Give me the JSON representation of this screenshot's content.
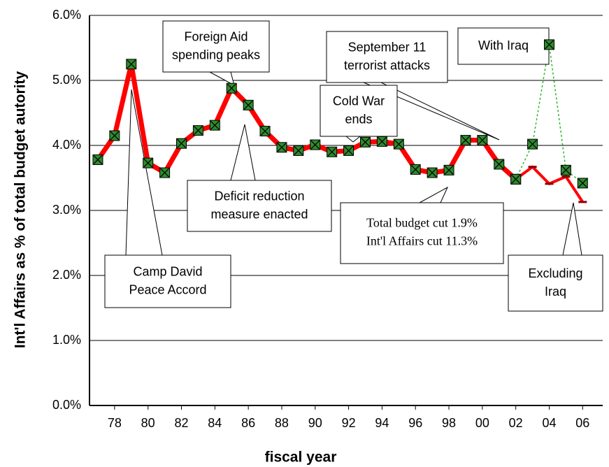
{
  "chart_data": {
    "type": "line",
    "xlabel": "fiscal year",
    "ylabel": "Int'l Affairs as % of total budget autority",
    "x": [
      1977,
      1978,
      1979,
      1980,
      1981,
      1982,
      1983,
      1984,
      1985,
      1986,
      1987,
      1988,
      1989,
      1990,
      1991,
      1992,
      1993,
      1994,
      1995,
      1996,
      1997,
      1998,
      1999,
      2000,
      2001,
      2002,
      2003,
      2004,
      2005,
      2006
    ],
    "series": [
      {
        "color": "#ff0000",
        "marker_color": "#2e8b2e",
        "markers": true,
        "dashed": false,
        "values": [
          3.78,
          4.15,
          5.25,
          3.73,
          3.58,
          4.03,
          4.23,
          4.31,
          4.88,
          4.62,
          4.22,
          3.97,
          3.92,
          4.01,
          3.9,
          3.92,
          4.05,
          4.06,
          4.02,
          3.63,
          3.58,
          3.62,
          4.08,
          4.08,
          3.71,
          3.48,
          null,
          null,
          null,
          null
        ]
      },
      {
        "color": "#ff0000",
        "markers": false,
        "dashed": false,
        "values": [
          null,
          null,
          null,
          null,
          null,
          null,
          null,
          null,
          null,
          null,
          null,
          null,
          null,
          null,
          null,
          null,
          null,
          null,
          null,
          null,
          null,
          null,
          null,
          null,
          null,
          3.48,
          3.67,
          3.41,
          3.52,
          3.13
        ]
      },
      {
        "color": "#2eb82e",
        "marker_color": "#2e8b2e",
        "markers": true,
        "dashed": true,
        "values": [
          null,
          null,
          null,
          null,
          null,
          null,
          null,
          null,
          null,
          null,
          null,
          null,
          null,
          null,
          null,
          null,
          null,
          null,
          null,
          null,
          null,
          null,
          null,
          null,
          null,
          3.48,
          4.02,
          5.55,
          3.62,
          3.42
        ]
      }
    ],
    "xlim": [
      1976.5,
      2007.2
    ],
    "xticks": [
      {
        "value": 1978,
        "label": "78"
      },
      {
        "value": 1980,
        "label": "80"
      },
      {
        "value": 1982,
        "label": "82"
      },
      {
        "value": 1984,
        "label": "84"
      },
      {
        "value": 1986,
        "label": "86"
      },
      {
        "value": 1988,
        "label": "88"
      },
      {
        "value": 1990,
        "label": "90"
      },
      {
        "value": 1992,
        "label": "92"
      },
      {
        "value": 1994,
        "label": "94"
      },
      {
        "value": 1996,
        "label": "96"
      },
      {
        "value": 1998,
        "label": "98"
      },
      {
        "value": 2000,
        "label": "00"
      },
      {
        "value": 2002,
        "label": "02"
      },
      {
        "value": 2004,
        "label": "04"
      },
      {
        "value": 2006,
        "label": "06"
      }
    ],
    "ylim": [
      0,
      6
    ],
    "yticks": [
      {
        "value": 0,
        "label": "0.0%"
      },
      {
        "value": 1,
        "label": "1.0%"
      },
      {
        "value": 2,
        "label": "2.0%"
      },
      {
        "value": 3,
        "label": "3.0%"
      },
      {
        "value": 4,
        "label": "4.0%"
      },
      {
        "value": 5,
        "label": "5.0%"
      },
      {
        "value": 6,
        "label": "6.0%"
      }
    ],
    "grid": true,
    "annotations": [
      {
        "lines": [
          "Foreign Aid",
          "spending peaks"
        ]
      },
      {
        "lines": [
          "September 11",
          "terrorist attacks"
        ]
      },
      {
        "lines": [
          "With Iraq"
        ]
      },
      {
        "lines": [
          "Cold War",
          "ends"
        ]
      },
      {
        "lines": [
          "Deficit reduction",
          "measure enacted"
        ]
      },
      {
        "lines": [
          "Total budget cut 1.9%",
          "Int'l Affairs cut 11.3%"
        ]
      },
      {
        "lines": [
          "Camp David",
          "Peace Accord"
        ]
      },
      {
        "lines": [
          "Excluding",
          "Iraq"
        ]
      }
    ]
  }
}
